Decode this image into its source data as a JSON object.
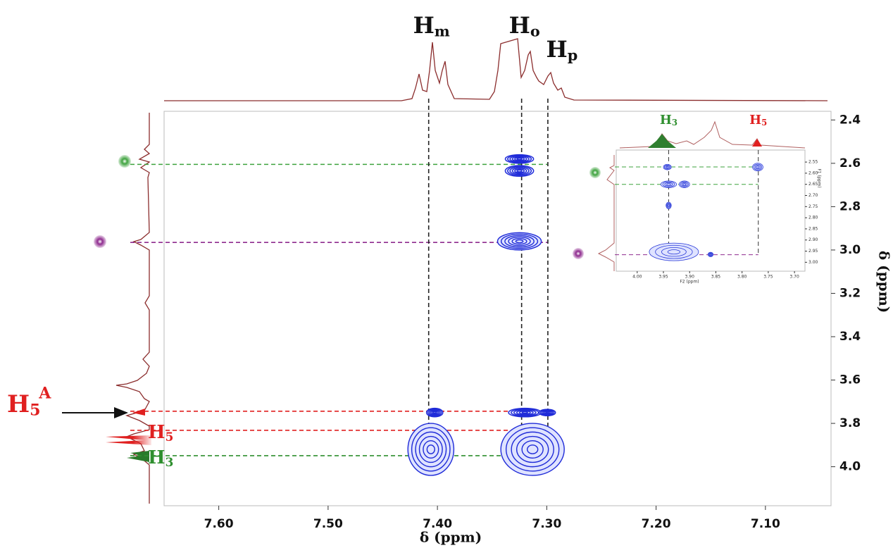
{
  "chart_data": [
    {
      "type": "contour2d",
      "xlabel": "δ (ppm)",
      "ylabel": "δ (ppm)",
      "color": "#1f2bd8",
      "xlim": [
        7.65,
        7.04
      ],
      "ylim": [
        2.36,
        4.18
      ],
      "xticks": [
        {
          "value": 7.6,
          "label": "7.60"
        },
        {
          "value": 7.5,
          "label": "7.50"
        },
        {
          "value": 7.4,
          "label": "7.40"
        },
        {
          "value": 7.3,
          "label": "7.30"
        },
        {
          "value": 7.2,
          "label": "7.20"
        },
        {
          "value": 7.1,
          "label": "7.10"
        }
      ],
      "yticks": [
        2.4,
        2.6,
        2.8,
        {
          "value": 3,
          "label": "3.0"
        },
        3.2,
        3.4,
        3.6,
        3.8,
        {
          "value": 4,
          "label": "4.0"
        }
      ],
      "peaks": [
        {
          "x": [
            7.41,
            7.395
          ],
          "y": [
            3.73,
            3.77
          ]
        },
        {
          "x": [
            7.335,
            7.305
          ],
          "y": [
            3.73,
            3.77
          ]
        },
        {
          "x": [
            7.307,
            7.292
          ],
          "y": [
            3.735,
            3.765
          ]
        },
        {
          "x": [
            7.338,
            7.312
          ],
          "y": [
            2.56,
            2.6
          ]
        },
        {
          "x": [
            7.338,
            7.312
          ],
          "y": [
            2.61,
            2.66
          ]
        },
        {
          "x": [
            7.345,
            7.305
          ],
          "y": [
            2.92,
            3.0
          ]
        },
        {
          "x": [
            7.427,
            7.385
          ],
          "y": [
            3.8,
            4.04
          ]
        },
        {
          "x": [
            7.342,
            7.284
          ],
          "y": [
            3.8,
            4.04
          ]
        }
      ],
      "guides_x": [
        {
          "value": 7.408,
          "label": "H",
          "sub": "m"
        },
        {
          "value": 7.323,
          "label": "H",
          "sub": "o"
        },
        {
          "value": 7.299,
          "label": "H",
          "sub": "p"
        }
      ],
      "guides_y": [
        {
          "value": 2.605,
          "color": "#3fa33f"
        },
        {
          "value": 2.965,
          "color": "#8e2a8e"
        },
        {
          "value": 3.744,
          "color": "#e02020",
          "label": "H",
          "sub": "5",
          "sup": "A"
        },
        {
          "value": 3.832,
          "color": "#e02020",
          "label": "H",
          "sub": "5"
        },
        {
          "value": 3.949,
          "color": "#2f8f2f",
          "label": "H",
          "sub": "3"
        }
      ]
    },
    {
      "type": "contour2d",
      "xlabel": "F2 (ppm)",
      "ylabel": "F1 (ppm)",
      "color": "#2a3ad8",
      "xlim": [
        4.04,
        3.68
      ],
      "ylim": [
        2.496,
        3.04
      ],
      "xticks": [
        {
          "value": 4,
          "label": "4.00"
        },
        3.95,
        {
          "value": 3.9,
          "label": "3.90"
        },
        3.85,
        {
          "value": 3.8,
          "label": "3.80"
        },
        3.75,
        {
          "value": 3.7,
          "label": "3.70"
        }
      ],
      "yticks": [
        2.55,
        {
          "value": 2.6,
          "label": "2.60"
        },
        2.65,
        {
          "value": 2.7,
          "label": "2.70"
        },
        2.75,
        {
          "value": 2.8,
          "label": "2.80"
        },
        2.85,
        {
          "value": 2.9,
          "label": "2.90"
        },
        2.95,
        {
          "value": 3,
          "label": "3.00"
        }
      ],
      "peaks": [
        {
          "x": [
            3.95,
            3.935
          ],
          "y": [
            2.56,
            2.585
          ]
        },
        {
          "x": [
            3.78,
            3.76
          ],
          "y": [
            2.555,
            2.59
          ]
        },
        {
          "x": [
            3.955,
            3.925
          ],
          "y": [
            2.635,
            2.665
          ]
        },
        {
          "x": [
            3.92,
            3.9
          ],
          "y": [
            2.635,
            2.665
          ]
        },
        {
          "x": [
            3.945,
            3.935
          ],
          "y": [
            2.73,
            2.76
          ]
        },
        {
          "x": [
            3.977,
            3.883
          ],
          "y": [
            2.914,
            2.993
          ]
        },
        {
          "x": [
            3.865,
            3.855
          ],
          "y": [
            2.955,
            2.975
          ]
        }
      ],
      "guides_x": [
        {
          "value": 3.94,
          "color": "#2f8f2f",
          "label": "H",
          "sub": "3"
        },
        {
          "value": 3.769,
          "color": "#e02020",
          "label": "H",
          "sub": "5"
        }
      ],
      "guides_y": [
        {
          "value": 2.572,
          "color": "#3fa33f"
        },
        {
          "value": 2.65,
          "color": "#3fa33f"
        },
        {
          "value": 2.966,
          "color": "#8e2a8e"
        }
      ]
    }
  ]
}
